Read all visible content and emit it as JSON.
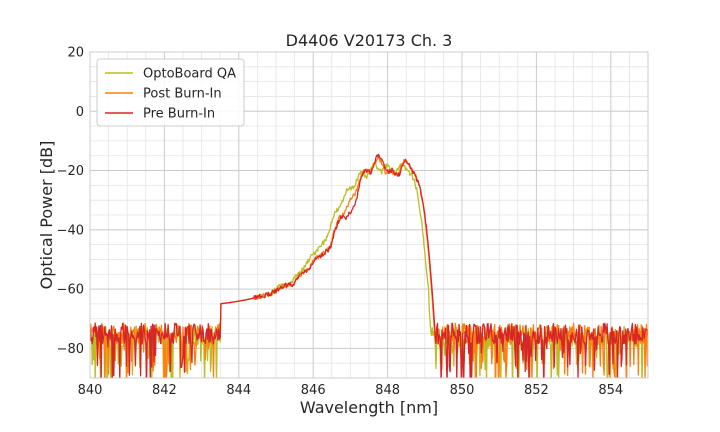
{
  "chart_data": {
    "type": "line",
    "title": "D4406 V20173 Ch. 3",
    "xlabel": "Wavelength [nm]",
    "ylabel": "Optical Power [dB]",
    "xlim": [
      840,
      855
    ],
    "ylim": [
      -90,
      20
    ],
    "xticks": [
      840,
      842,
      844,
      846,
      848,
      850,
      852,
      854
    ],
    "yticks": [
      20,
      0,
      -20,
      -40,
      -60,
      -80
    ],
    "xtick_labels": [
      "840",
      "842",
      "844",
      "846",
      "848",
      "850",
      "852",
      "854"
    ],
    "ytick_labels": [
      "20",
      "0",
      "−20",
      "−40",
      "−60",
      "−80"
    ],
    "x_minor_step": 0.5,
    "y_minor_step": 5,
    "grid": true,
    "legend_position": "top-left",
    "series": [
      {
        "name": "OptoBoard QA",
        "color": "#bcbd22",
        "peak_offset_nm": -0.1,
        "noise_floor_db": -76,
        "peaks": [
          {
            "x": 845.15,
            "y": -64,
            "w": 0.14
          },
          {
            "x": 845.65,
            "y": -57,
            "w": 0.14
          },
          {
            "x": 846.0,
            "y": -50,
            "w": 0.14
          },
          {
            "x": 846.3,
            "y": -45,
            "w": 0.14
          },
          {
            "x": 846.65,
            "y": -34,
            "w": 0.12
          },
          {
            "x": 846.98,
            "y": -26,
            "w": 0.12
          },
          {
            "x": 847.3,
            "y": -21,
            "w": 0.11
          },
          {
            "x": 847.65,
            "y": -18,
            "w": 0.11
          },
          {
            "x": 848.0,
            "y": -18,
            "w": 0.11
          },
          {
            "x": 848.37,
            "y": -18,
            "w": 0.11
          },
          {
            "x": 848.62,
            "y": -22,
            "w": 0.11
          }
        ],
        "points": [
          [
            840.0,
            -76
          ],
          [
            842.0,
            -76
          ],
          [
            844.0,
            -73
          ],
          [
            844.5,
            -71
          ],
          [
            845.15,
            -64
          ],
          [
            845.65,
            -57
          ],
          [
            846.3,
            -45
          ],
          [
            846.98,
            -26
          ],
          [
            847.3,
            -21
          ],
          [
            847.65,
            -18
          ],
          [
            848.0,
            -18
          ],
          [
            848.37,
            -18
          ],
          [
            848.62,
            -22
          ],
          [
            849.1,
            -72
          ],
          [
            850.0,
            -77
          ],
          [
            852.0,
            -77
          ],
          [
            855.0,
            -77
          ]
        ]
      },
      {
        "name": "Post Burn-In",
        "color": "#ff7f0e",
        "peak_offset_nm": 0.0,
        "noise_floor_db": -75,
        "peaks": [
          {
            "x": 845.25,
            "y": -64,
            "w": 0.14
          },
          {
            "x": 845.75,
            "y": -57,
            "w": 0.14
          },
          {
            "x": 846.1,
            "y": -51,
            "w": 0.14
          },
          {
            "x": 846.4,
            "y": -48,
            "w": 0.14
          },
          {
            "x": 846.75,
            "y": -36,
            "w": 0.12
          },
          {
            "x": 847.08,
            "y": -29,
            "w": 0.12
          },
          {
            "x": 847.4,
            "y": -20,
            "w": 0.11
          },
          {
            "x": 847.75,
            "y": -16,
            "w": 0.11
          },
          {
            "x": 848.1,
            "y": -20,
            "w": 0.11
          },
          {
            "x": 848.47,
            "y": -17,
            "w": 0.11
          },
          {
            "x": 848.72,
            "y": -22,
            "w": 0.11
          }
        ],
        "points": [
          [
            840.0,
            -75
          ],
          [
            842.0,
            -75
          ],
          [
            844.0,
            -72
          ],
          [
            844.5,
            -70
          ],
          [
            845.25,
            -64
          ],
          [
            845.75,
            -57
          ],
          [
            846.4,
            -48
          ],
          [
            847.08,
            -29
          ],
          [
            847.4,
            -20
          ],
          [
            847.75,
            -16
          ],
          [
            848.1,
            -20
          ],
          [
            848.47,
            -17
          ],
          [
            848.72,
            -22
          ],
          [
            849.2,
            -72
          ],
          [
            850.0,
            -76
          ],
          [
            852.0,
            -76
          ],
          [
            855.0,
            -76
          ]
        ]
      },
      {
        "name": "Pre Burn-In",
        "color": "#d62728",
        "peak_offset_nm": 0.02,
        "noise_floor_db": -75,
        "peaks": [
          {
            "x": 845.27,
            "y": -64,
            "w": 0.14
          },
          {
            "x": 845.77,
            "y": -57,
            "w": 0.14
          },
          {
            "x": 846.12,
            "y": -51,
            "w": 0.14
          },
          {
            "x": 846.42,
            "y": -48,
            "w": 0.14
          },
          {
            "x": 846.77,
            "y": -36,
            "w": 0.12
          },
          {
            "x": 847.1,
            "y": -33,
            "w": 0.12
          },
          {
            "x": 847.42,
            "y": -20,
            "w": 0.11
          },
          {
            "x": 847.77,
            "y": -15,
            "w": 0.11
          },
          {
            "x": 848.12,
            "y": -20,
            "w": 0.11
          },
          {
            "x": 848.49,
            "y": -17,
            "w": 0.11
          },
          {
            "x": 848.74,
            "y": -23,
            "w": 0.11
          }
        ],
        "points": [
          [
            840.0,
            -75
          ],
          [
            842.0,
            -75
          ],
          [
            844.0,
            -72
          ],
          [
            844.5,
            -70
          ],
          [
            845.27,
            -64
          ],
          [
            845.77,
            -57
          ],
          [
            846.42,
            -48
          ],
          [
            847.1,
            -33
          ],
          [
            847.42,
            -20
          ],
          [
            847.77,
            -15
          ],
          [
            848.12,
            -20
          ],
          [
            848.49,
            -17
          ],
          [
            848.74,
            -23
          ],
          [
            849.2,
            -72
          ],
          [
            850.0,
            -76
          ],
          [
            852.0,
            -76
          ],
          [
            855.0,
            -76
          ]
        ]
      }
    ]
  }
}
